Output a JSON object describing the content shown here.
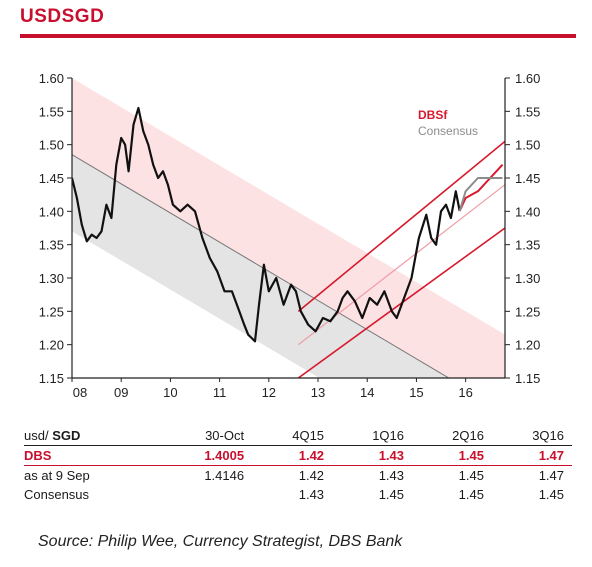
{
  "header": {
    "title": "USDSGD"
  },
  "chart_data": {
    "type": "line",
    "title": "USDSGD",
    "ylim": [
      1.15,
      1.6
    ],
    "yticks": [
      "1.60",
      "1.55",
      "1.50",
      "1.45",
      "1.40",
      "1.35",
      "1.30",
      "1.25",
      "1.20",
      "1.15"
    ],
    "xticks": [
      "08",
      "09",
      "10",
      "11",
      "12",
      "13",
      "14",
      "15",
      "16"
    ],
    "xrange": [
      2008.0,
      2016.8
    ],
    "legend": {
      "position": "top-right",
      "items": [
        "DBSf",
        "Consensus"
      ]
    },
    "colors": {
      "price": "#111111",
      "dbs": "#d7192d",
      "consensus": "#8c8c8c",
      "down_band": "#fde2e4",
      "down_lower": "#e4e4e4",
      "up_mid": "#ef9aa4",
      "down_mid": "#777777"
    },
    "series": [
      {
        "kind": "price",
        "x": [
          2008.0,
          2008.1,
          2008.2,
          2008.3,
          2008.4,
          2008.5,
          2008.6,
          2008.7,
          2008.8,
          2008.9,
          2009.0,
          2009.08,
          2009.15,
          2009.25,
          2009.35,
          2009.45,
          2009.55,
          2009.65,
          2009.75,
          2009.85,
          2009.95,
          2010.05,
          2010.2,
          2010.35,
          2010.5,
          2010.65,
          2010.8,
          2010.95,
          2011.1,
          2011.25,
          2011.4,
          2011.5,
          2011.58,
          2011.65,
          2011.72,
          2011.8,
          2011.9,
          2012.0,
          2012.15,
          2012.3,
          2012.45,
          2012.55,
          2012.65,
          2012.8,
          2012.95,
          2013.1,
          2013.25,
          2013.4,
          2013.5,
          2013.6,
          2013.75,
          2013.9,
          2014.05,
          2014.2,
          2014.35,
          2014.5,
          2014.6,
          2014.75,
          2014.9,
          2015.05,
          2015.2,
          2015.3,
          2015.4,
          2015.5,
          2015.6,
          2015.7,
          2015.8,
          2015.88
        ],
        "y": [
          1.45,
          1.42,
          1.38,
          1.355,
          1.365,
          1.36,
          1.37,
          1.41,
          1.39,
          1.47,
          1.51,
          1.5,
          1.46,
          1.53,
          1.555,
          1.52,
          1.5,
          1.47,
          1.45,
          1.46,
          1.44,
          1.41,
          1.4,
          1.41,
          1.4,
          1.36,
          1.33,
          1.31,
          1.28,
          1.28,
          1.25,
          1.23,
          1.215,
          1.21,
          1.205,
          1.26,
          1.32,
          1.28,
          1.3,
          1.26,
          1.29,
          1.28,
          1.25,
          1.23,
          1.22,
          1.24,
          1.235,
          1.25,
          1.27,
          1.28,
          1.265,
          1.24,
          1.27,
          1.26,
          1.28,
          1.25,
          1.24,
          1.27,
          1.3,
          1.36,
          1.395,
          1.36,
          1.35,
          1.4,
          1.41,
          1.39,
          1.43,
          1.4005
        ]
      },
      {
        "kind": "dbs_forecast",
        "x": [
          2015.88,
          2016.0,
          2016.25,
          2016.5,
          2016.75
        ],
        "y": [
          1.4005,
          1.42,
          1.43,
          1.45,
          1.47
        ]
      },
      {
        "kind": "consensus_forecast",
        "x": [
          2015.88,
          2016.0,
          2016.25,
          2016.5,
          2016.75
        ],
        "y": [
          1.4005,
          1.43,
          1.45,
          1.45,
          1.45
        ]
      }
    ],
    "channels": {
      "down": {
        "x0": 2008.0,
        "x1": 2016.8,
        "upper": [
          1.6,
          1.215
        ],
        "mid": [
          1.485,
          1.1
        ],
        "lower": [
          1.37,
          0.985
        ]
      },
      "up": {
        "x0": 2012.6,
        "x1": 2016.8,
        "upper": [
          1.25,
          1.505
        ],
        "mid": [
          1.2,
          1.44
        ],
        "lower": [
          1.15,
          1.375
        ]
      }
    }
  },
  "forecast_table": {
    "header_label_prefix": "usd/",
    "header_label_bold": "SGD",
    "columns": [
      "30-Oct",
      "4Q15",
      "1Q16",
      "2Q16",
      "3Q16"
    ],
    "rows": [
      {
        "label": "DBS",
        "values": [
          "1.4005",
          "1.42",
          "1.43",
          "1.45",
          "1.47"
        ]
      },
      {
        "label": "as at 9 Sep",
        "values": [
          "1.4146",
          "1.42",
          "1.43",
          "1.45",
          "1.47"
        ]
      },
      {
        "label": "Consensus",
        "values": [
          "",
          "1.43",
          "1.45",
          "1.45",
          "1.45"
        ]
      }
    ]
  },
  "source": "Source: Philip Wee, Currency Strategist, DBS Bank"
}
